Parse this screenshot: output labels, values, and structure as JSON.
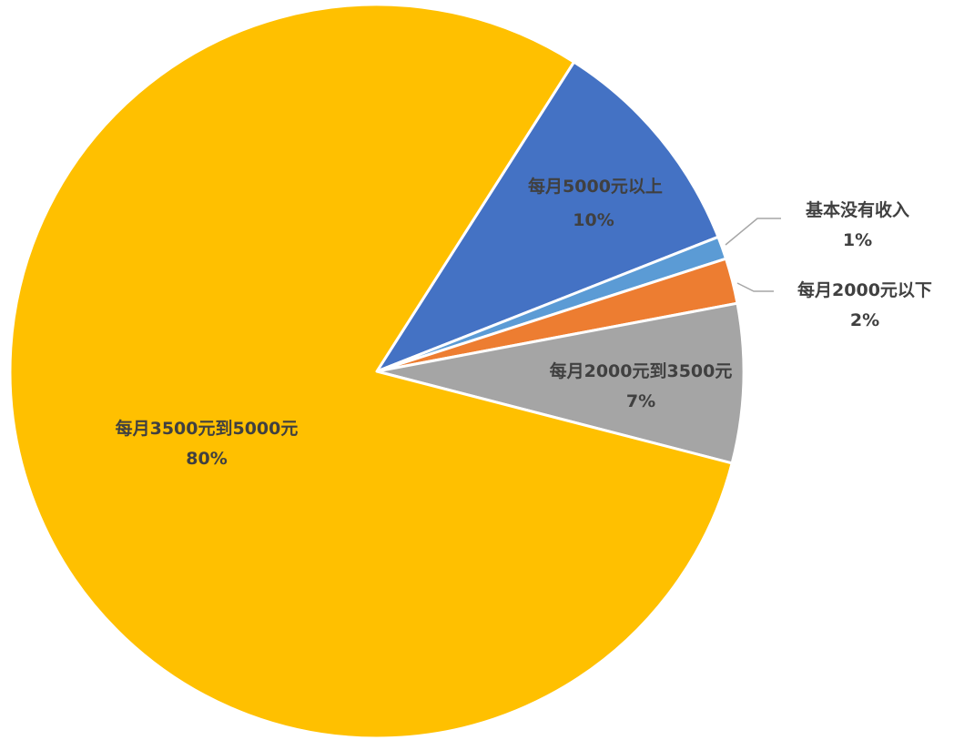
{
  "chart_data": {
    "type": "pie",
    "title": "",
    "slices": [
      {
        "label": "每月5000元以上",
        "value": 10,
        "pct_label": "10%",
        "color": "#4472C4"
      },
      {
        "label": "基本没有收入",
        "value": 1,
        "pct_label": "1%",
        "color": "#5B9BD5"
      },
      {
        "label": "每月2000元以下",
        "value": 2,
        "pct_label": "2%",
        "color": "#ED7D31"
      },
      {
        "label": "每月2000元到3500元",
        "value": 7,
        "pct_label": "7%",
        "color": "#A5A5A5"
      },
      {
        "label": "每月3500元到5000元",
        "value": 80,
        "pct_label": "80%",
        "color": "#FFC000"
      }
    ]
  }
}
